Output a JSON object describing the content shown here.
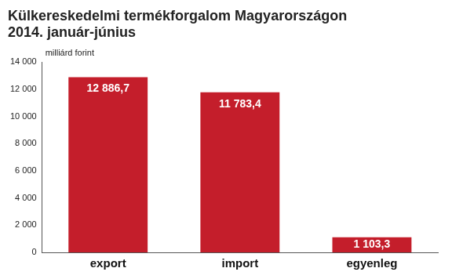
{
  "chart_data": {
    "type": "bar",
    "title": [
      "Külkereskedelmi termékforgalom Magyarországon",
      "2014. január-június"
    ],
    "ylabel": "milliárd forint",
    "categories": [
      "export",
      "import",
      "egyenleg"
    ],
    "values": [
      12886.7,
      11783.4,
      1103.3
    ],
    "value_labels": [
      "12 886,7",
      "11 783,4",
      "1 103,3"
    ],
    "data_labels": true,
    "color": "#c41e2b",
    "ylim": [
      0,
      14000
    ],
    "yticks": [
      0,
      {
        "value": 2000,
        "label": "2 000"
      },
      {
        "value": 4000,
        "label": "4 000"
      },
      {
        "value": 6000,
        "label": "6 000"
      },
      {
        "value": 8000,
        "label": "8 000"
      },
      {
        "value": 10000,
        "label": "10 000"
      },
      {
        "value": 12000,
        "label": "12 000"
      },
      {
        "value": 14000,
        "label": "14 000"
      }
    ],
    "grid": false
  }
}
